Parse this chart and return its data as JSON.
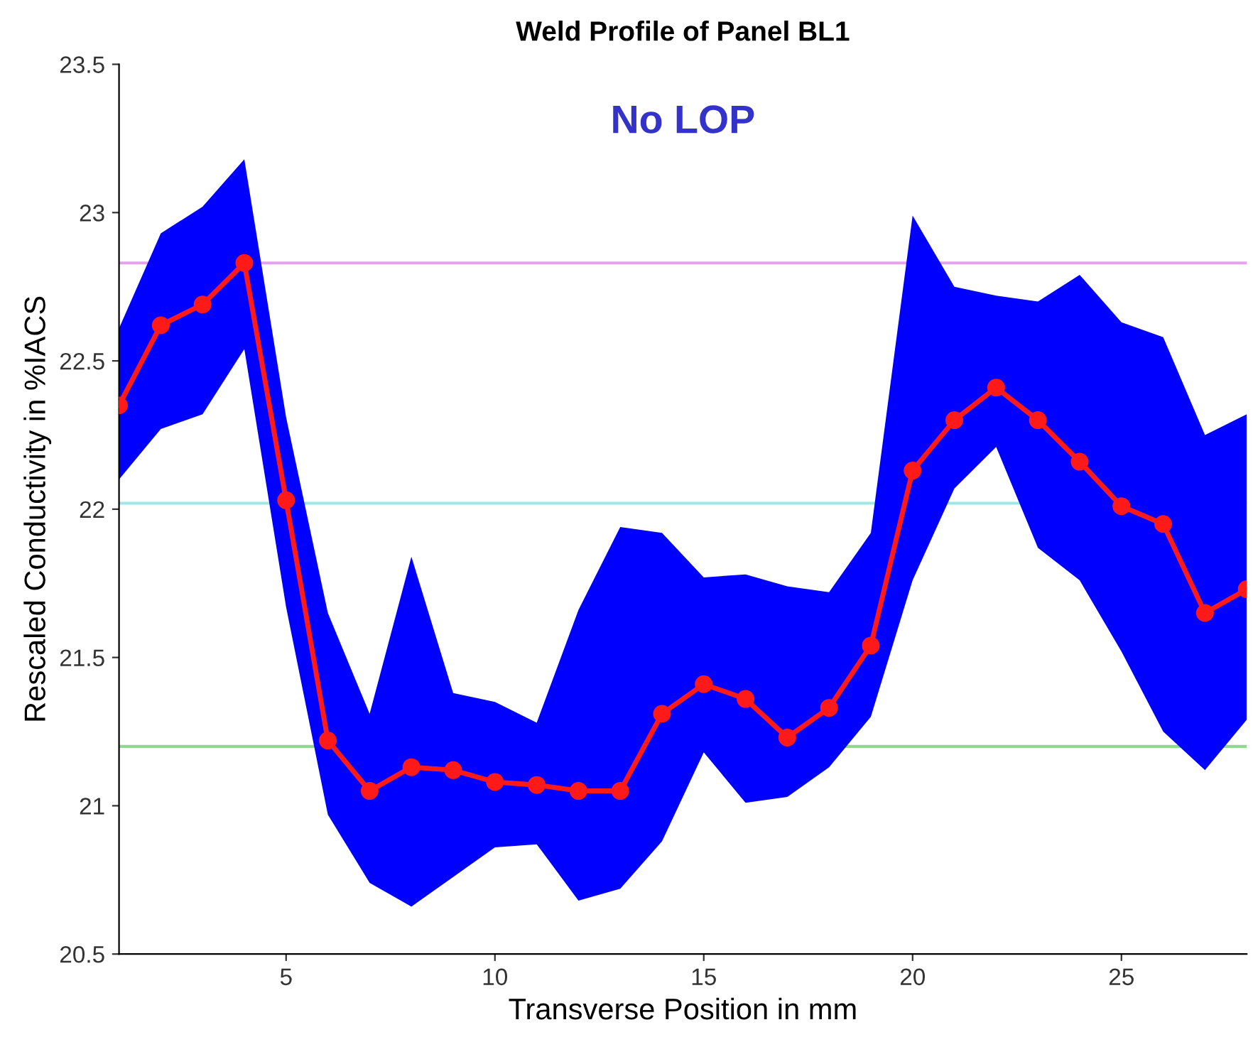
{
  "chart_data": {
    "type": "line",
    "title": "Weld Profile of Panel BL1",
    "xlabel": "Transverse Position in mm",
    "ylabel": "Rescaled Conductivity in %IACS",
    "annotations": [
      "No LOP"
    ],
    "x": [
      1,
      2,
      3,
      4,
      5,
      6,
      7,
      8,
      9,
      10,
      11,
      12,
      13,
      14,
      15,
      16,
      17,
      18,
      19,
      20,
      21,
      22,
      23,
      24,
      25,
      26,
      27,
      28
    ],
    "series": [
      {
        "color": "#ff1a1a",
        "values": [
          22.35,
          22.62,
          22.69,
          22.83,
          22.03,
          21.22,
          21.05,
          21.13,
          21.12,
          21.08,
          21.07,
          21.05,
          21.05,
          21.31,
          21.41,
          21.36,
          21.23,
          21.33,
          21.54,
          22.13,
          22.3,
          22.41,
          22.3,
          22.16,
          22.01,
          21.95,
          21.65,
          21.73
        ],
        "lower": [
          22.1,
          22.27,
          22.32,
          22.54,
          21.67,
          20.97,
          20.74,
          20.66,
          20.76,
          20.86,
          20.87,
          20.68,
          20.72,
          20.88,
          21.18,
          21.01,
          21.03,
          21.13,
          21.3,
          21.76,
          22.07,
          22.21,
          21.87,
          21.76,
          21.52,
          21.25,
          21.12,
          21.29
        ],
        "upper": [
          22.61,
          22.93,
          23.02,
          23.18,
          22.31,
          21.65,
          21.31,
          21.84,
          21.38,
          21.35,
          21.28,
          21.66,
          21.94,
          21.92,
          21.77,
          21.78,
          21.74,
          21.72,
          21.92,
          22.99,
          22.75,
          22.72,
          22.7,
          22.79,
          22.63,
          22.58,
          22.25,
          22.32
        ]
      }
    ],
    "ref_lines": [
      {
        "axis": "y",
        "value": 22.83,
        "color": "#e3a3ec"
      },
      {
        "axis": "y",
        "value": 22.02,
        "color": "#9fe6e6"
      },
      {
        "axis": "y",
        "value": 21.2,
        "color": "#8fd98f"
      }
    ],
    "marker": "circle",
    "line_style": "solid",
    "grid": false,
    "legend": false,
    "xlim": [
      1,
      28
    ],
    "xticks": [
      5,
      10,
      15,
      20,
      25
    ],
    "ylim": [
      20.5,
      23.5
    ],
    "yticks": [
      20.5,
      21,
      21.5,
      22,
      22.5,
      23,
      23.5
    ]
  }
}
